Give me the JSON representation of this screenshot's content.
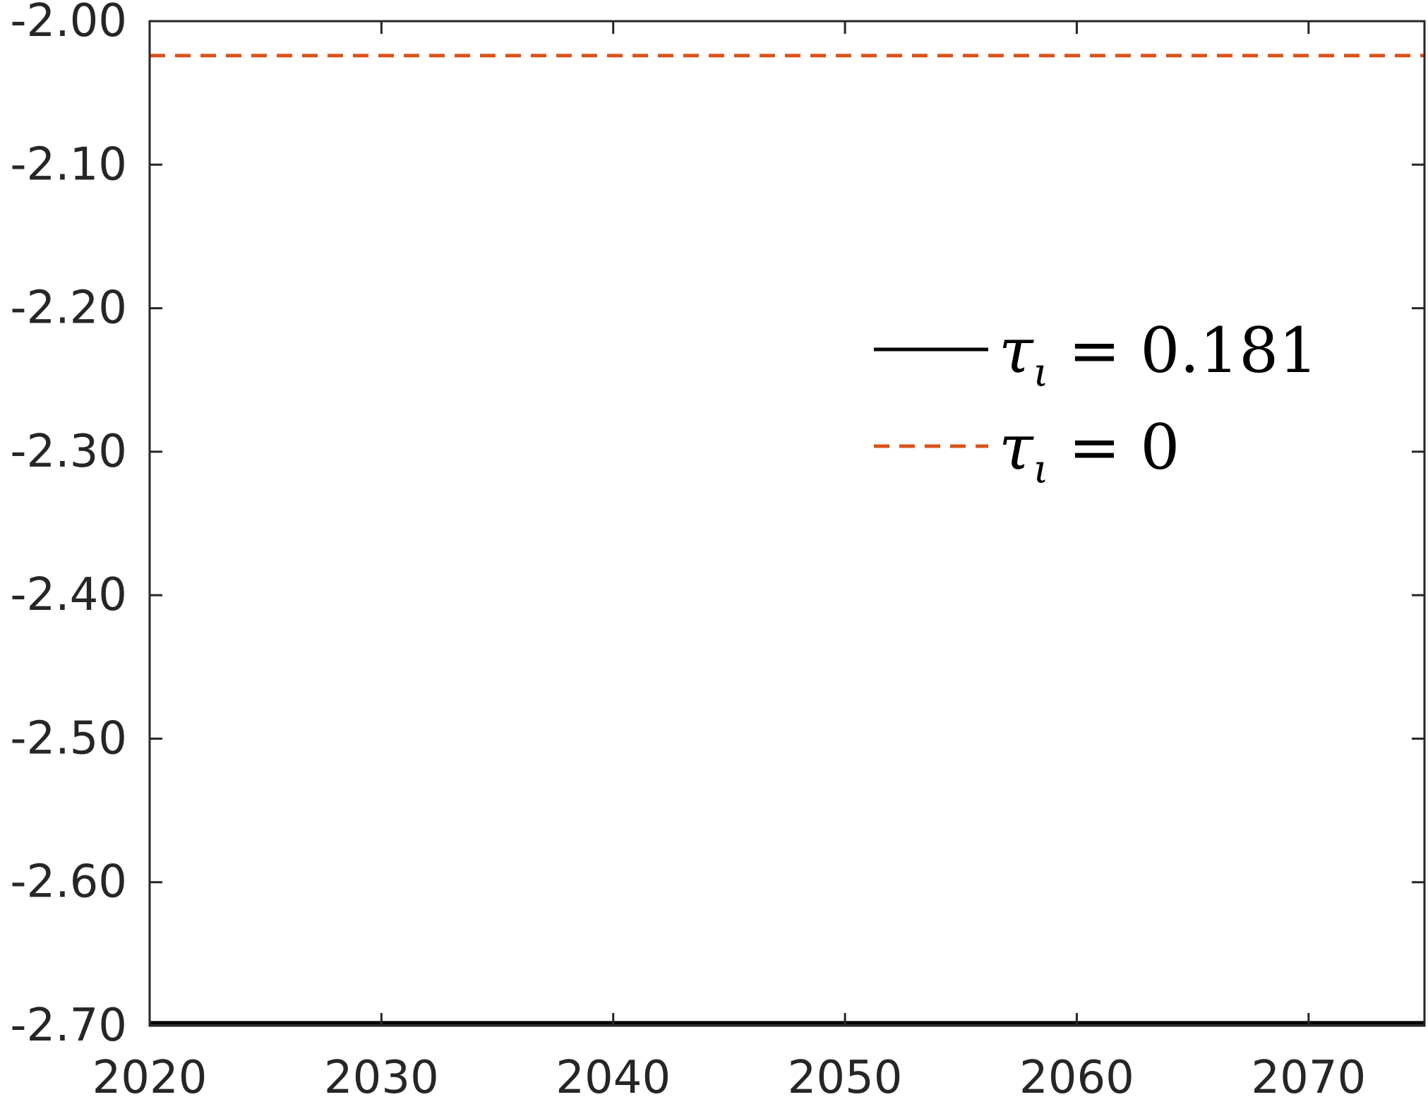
{
  "chart_data": {
    "type": "line",
    "title": "",
    "xlabel": "",
    "ylabel": "",
    "xlim": [
      2020,
      2075
    ],
    "ylim": [
      -2.7,
      -2.0
    ],
    "x_ticks": [
      2020,
      2030,
      2040,
      2050,
      2060,
      2070
    ],
    "x_tick_labels": [
      "2020",
      "2030",
      "2040",
      "2050",
      "2060",
      "2070"
    ],
    "y_ticks": [
      -2.0,
      -2.1,
      -2.2,
      -2.3,
      -2.4,
      -2.5,
      -2.6,
      -2.7
    ],
    "y_tick_labels": [
      "-2.00",
      "-2.10",
      "-2.20",
      "-2.30",
      "-2.40",
      "-2.50",
      "-2.60",
      "-2.70"
    ],
    "grid": false,
    "legend_position": "upper-right",
    "series": [
      {
        "name": "τι = 0.181",
        "legend": {
          "symbol": "τ",
          "subscript": "ι",
          "rest": " = 0.181"
        },
        "color": "#000000",
        "line_style": "solid",
        "x": [
          2020,
          2075
        ],
        "y": [
          -2.698,
          -2.698
        ]
      },
      {
        "name": "τι = 0",
        "legend": {
          "symbol": "τ",
          "subscript": "ι",
          "rest": " = 0"
        },
        "color": "#D95319",
        "line_style": "dashed",
        "x": [
          2020,
          2075
        ],
        "y": [
          -2.024,
          -2.024
        ]
      }
    ]
  }
}
